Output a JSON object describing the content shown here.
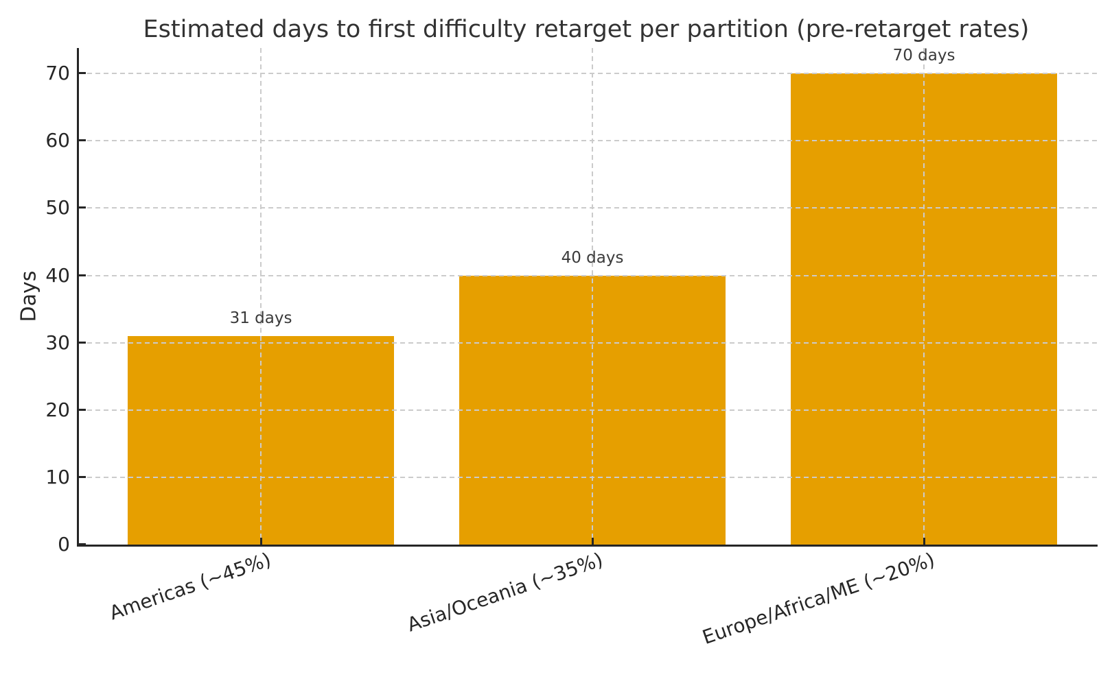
{
  "chart_data": {
    "type": "bar",
    "title": "Estimated days to first difficulty retarget per partition (pre-retarget rates)",
    "categories": [
      "Americas (~45%)",
      "Asia/Oceania (~35%)",
      "Europe/Africa/ME (~20%)"
    ],
    "values": [
      31,
      40,
      70
    ],
    "bar_labels": [
      "31 days",
      "40 days",
      "70 days"
    ],
    "xlabel": "",
    "ylabel": "Days",
    "yticks": [
      0,
      10,
      20,
      30,
      40,
      50,
      60,
      70
    ],
    "ylim": [
      0,
      73.8
    ],
    "grid": "dashed, horizontal at every 10 days and vertical at each bar center, drawn over bars",
    "legend_position": "none",
    "bar_color": "#E69F00",
    "text_color": "#262626",
    "grid_color": "#cbcbcb"
  }
}
